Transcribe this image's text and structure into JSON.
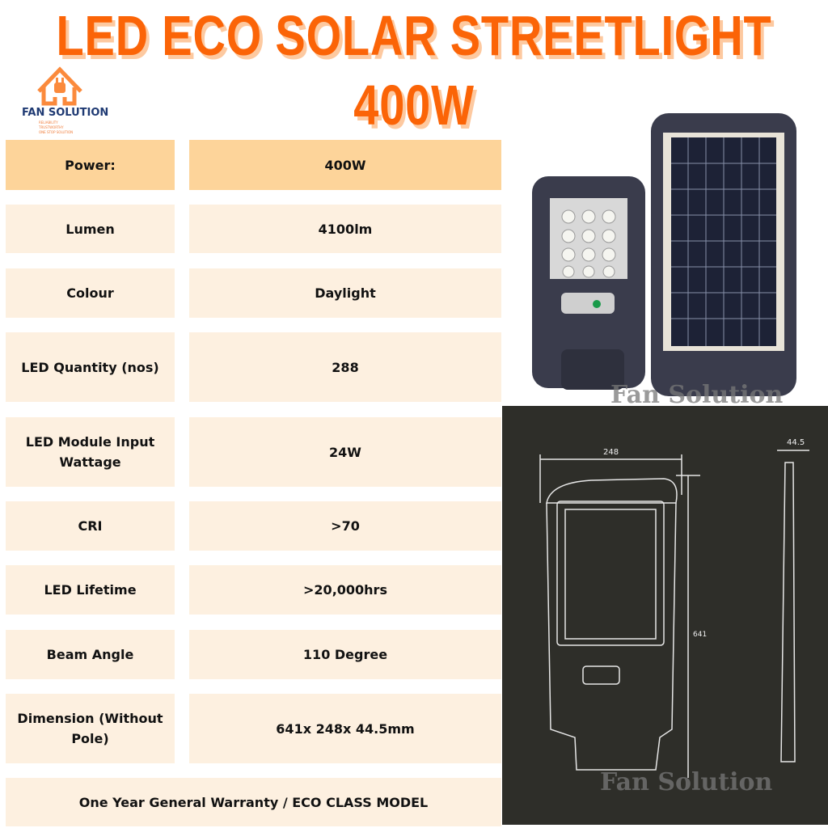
{
  "title": {
    "line1": "LED ECO SOLAR STREETLIGHT",
    "line2": "400W"
  },
  "brand": {
    "name": "FAN SOLUTION",
    "tags": [
      "RELIABILITY",
      "TRUSTWORTHY",
      "ONE STOP SOLUTION"
    ]
  },
  "specs": [
    {
      "label": "Power:",
      "value": "400W"
    },
    {
      "label": "Lumen",
      "value": "4100lm"
    },
    {
      "label": "Colour",
      "value": "Daylight"
    },
    {
      "label": "LED Quantity (nos)",
      "value": "288"
    },
    {
      "label": "LED Module Input Wattage",
      "value": "24W"
    },
    {
      "label": "CRI",
      "value": ">70"
    },
    {
      "label": "LED Lifetime",
      "value": ">20,000hrs"
    },
    {
      "label": "Beam Angle",
      "value": "110 Degree"
    },
    {
      "label": "Dimension (Without Pole)",
      "value": "641x 248x 44.5mm"
    }
  ],
  "footer": "One Year General Warranty / ECO CLASS MODEL",
  "watermark": "Fan Solution",
  "drawing": {
    "width": "248",
    "depth": "44.5",
    "height": "641"
  },
  "colors": {
    "accent": "#fb6407",
    "header_row": "#fdd49a",
    "row": "#fdf0e0",
    "brand": "#1f3a73"
  }
}
